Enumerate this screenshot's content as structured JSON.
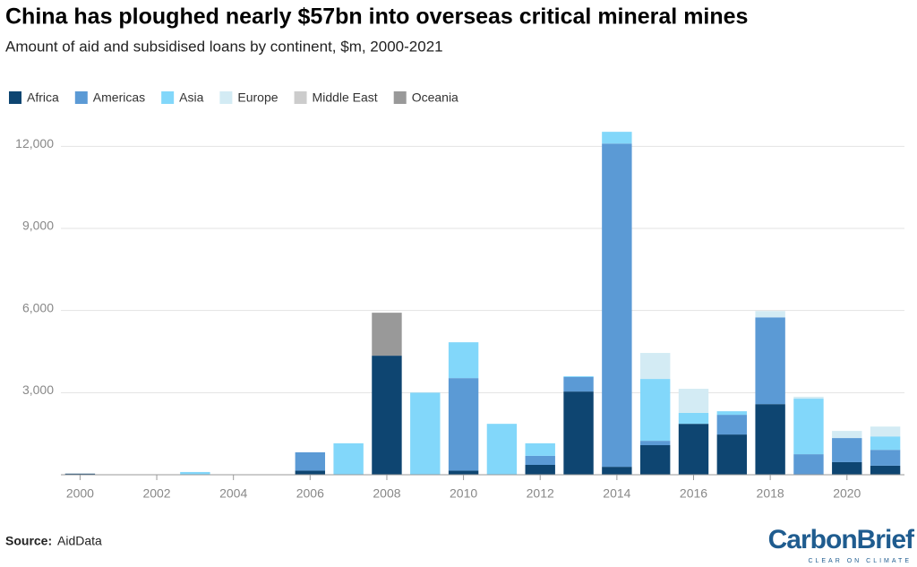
{
  "chart_data": {
    "type": "bar",
    "stacked": true,
    "title": "China has ploughed nearly $57bn into overseas critical mineral mines",
    "subtitle": "Amount of aid and subsidised loans by continent, $m, 2000-2021",
    "categories": [
      "2000",
      null,
      "2002",
      null,
      "2004",
      null,
      "2006",
      null,
      "2008",
      null,
      "2010",
      null,
      "2012",
      null,
      "2014",
      null,
      "2016",
      null,
      "2018",
      null,
      "2020",
      null
    ],
    "series": [
      {
        "name": "Africa",
        "color": "#0e4571",
        "values": [
          40,
          0,
          0,
          0,
          0,
          0,
          150,
          0,
          4350,
          0,
          150,
          0,
          360,
          3040,
          290,
          1080,
          1860,
          1470,
          2580,
          0,
          460,
          330
        ]
      },
      {
        "name": "Americas",
        "color": "#5b9ad5",
        "values": [
          0,
          0,
          0,
          0,
          0,
          0,
          670,
          0,
          0,
          0,
          3380,
          0,
          330,
          530,
          11810,
          160,
          0,
          720,
          3170,
          750,
          880,
          580
        ]
      },
      {
        "name": "Asia",
        "color": "#82d7fa",
        "values": [
          0,
          0,
          0,
          100,
          0,
          0,
          0,
          1150,
          0,
          3000,
          1310,
          1860,
          460,
          30,
          430,
          2260,
          400,
          130,
          0,
          2030,
          0,
          490
        ]
      },
      {
        "name": "Europe",
        "color": "#d3ebf4",
        "values": [
          0,
          0,
          0,
          0,
          0,
          0,
          0,
          0,
          0,
          0,
          0,
          0,
          0,
          0,
          0,
          950,
          880,
          0,
          230,
          70,
          260,
          360
        ]
      },
      {
        "name": "Middle East",
        "color": "#cccccc",
        "values": [
          0,
          0,
          0,
          0,
          0,
          0,
          0,
          0,
          0,
          0,
          0,
          0,
          0,
          0,
          0,
          0,
          0,
          0,
          0,
          0,
          0,
          0
        ]
      },
      {
        "name": "Oceania",
        "color": "#999999",
        "values": [
          0,
          0,
          0,
          0,
          0,
          0,
          0,
          0,
          1570,
          0,
          0,
          0,
          0,
          0,
          0,
          0,
          0,
          0,
          0,
          0,
          0,
          0
        ]
      }
    ],
    "ylim": [
      0,
      12600
    ],
    "yticks": [
      {
        "value": 3000,
        "label": "3,000"
      },
      {
        "value": 6000,
        "label": "6,000"
      },
      {
        "value": 9000,
        "label": "9,000"
      },
      {
        "value": 12000,
        "label": "12,000"
      }
    ],
    "grid": true,
    "legend": "top-left",
    "source_label": "Source:",
    "source": "AidData",
    "logo": "CarbonBrief",
    "logo_tagline": "CLEAR ON CLIMATE"
  }
}
